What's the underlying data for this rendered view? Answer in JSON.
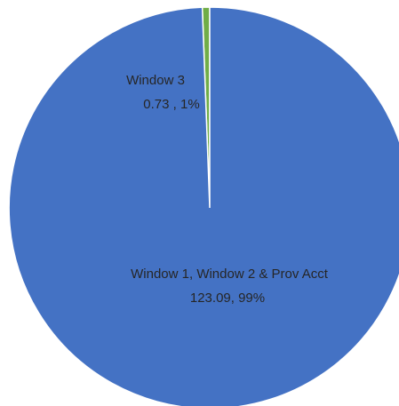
{
  "chart_data": {
    "type": "pie",
    "slices": [
      {
        "name": "Window 1, Window 2 & Prov Acct",
        "value": 123.09,
        "percent_label": "99%",
        "value_label": "123.09, 99%",
        "color": "#4472C4"
      },
      {
        "name": "Window 3",
        "value": 0.73,
        "percent_label": "1%",
        "value_label": "0.73 , 1%",
        "color": "#70AD47"
      }
    ],
    "start_angle_deg": 0,
    "direction": "clockwise",
    "slice_border_color": "#ffffff",
    "legend": "none"
  }
}
